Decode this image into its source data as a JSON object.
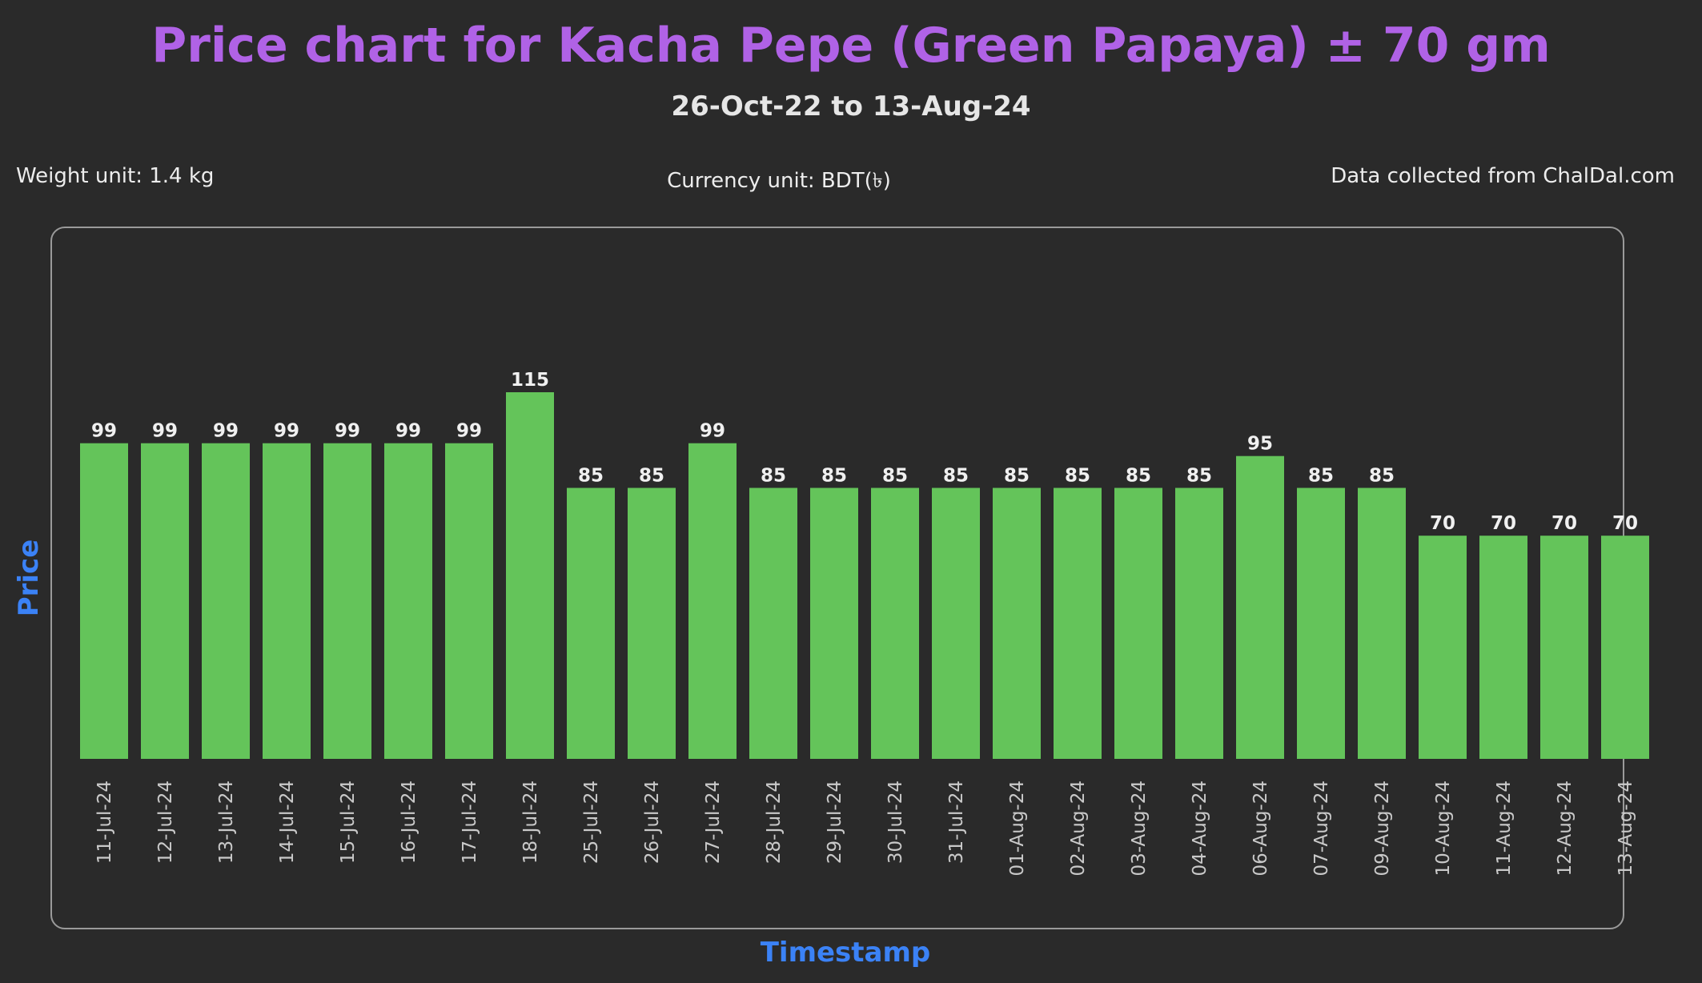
{
  "header": {
    "title": "Price chart for Kacha Pepe (Green Papaya) ± 70 gm",
    "subtitle": "26-Oct-22 to 13-Aug-24",
    "weight_unit": "Weight unit: 1.4 kg",
    "currency_unit": "Currency unit: BDT(৳)",
    "source": "Data collected from ChalDal.com"
  },
  "chart_data": {
    "type": "bar",
    "title": "Price chart for Kacha Pepe (Green Papaya) ± 70 gm",
    "subtitle": "26-Oct-22 to 13-Aug-24",
    "xlabel": "Timestamp",
    "ylabel": "Price",
    "categories": [
      "11-Jul-24",
      "12-Jul-24",
      "13-Jul-24",
      "14-Jul-24",
      "15-Jul-24",
      "16-Jul-24",
      "17-Jul-24",
      "18-Jul-24",
      "25-Jul-24",
      "26-Jul-24",
      "27-Jul-24",
      "28-Jul-24",
      "29-Jul-24",
      "30-Jul-24",
      "31-Jul-24",
      "01-Aug-24",
      "02-Aug-24",
      "03-Aug-24",
      "04-Aug-24",
      "06-Aug-24",
      "07-Aug-24",
      "09-Aug-24",
      "10-Aug-24",
      "11-Aug-24",
      "12-Aug-24",
      "13-Aug-24"
    ],
    "values": [
      99,
      99,
      99,
      99,
      99,
      99,
      99,
      115,
      85,
      85,
      99,
      85,
      85,
      85,
      85,
      85,
      85,
      85,
      85,
      95,
      85,
      85,
      70,
      70,
      70,
      70
    ],
    "ylim": [
      0,
      115
    ],
    "grid": false,
    "legend": "none",
    "data_labels": true,
    "bar_color": "#64c45a"
  },
  "colors": {
    "background": "#2a2a2a",
    "title": "#b062e6",
    "axis_label": "#3b82f6",
    "bar": "#64c45a"
  }
}
